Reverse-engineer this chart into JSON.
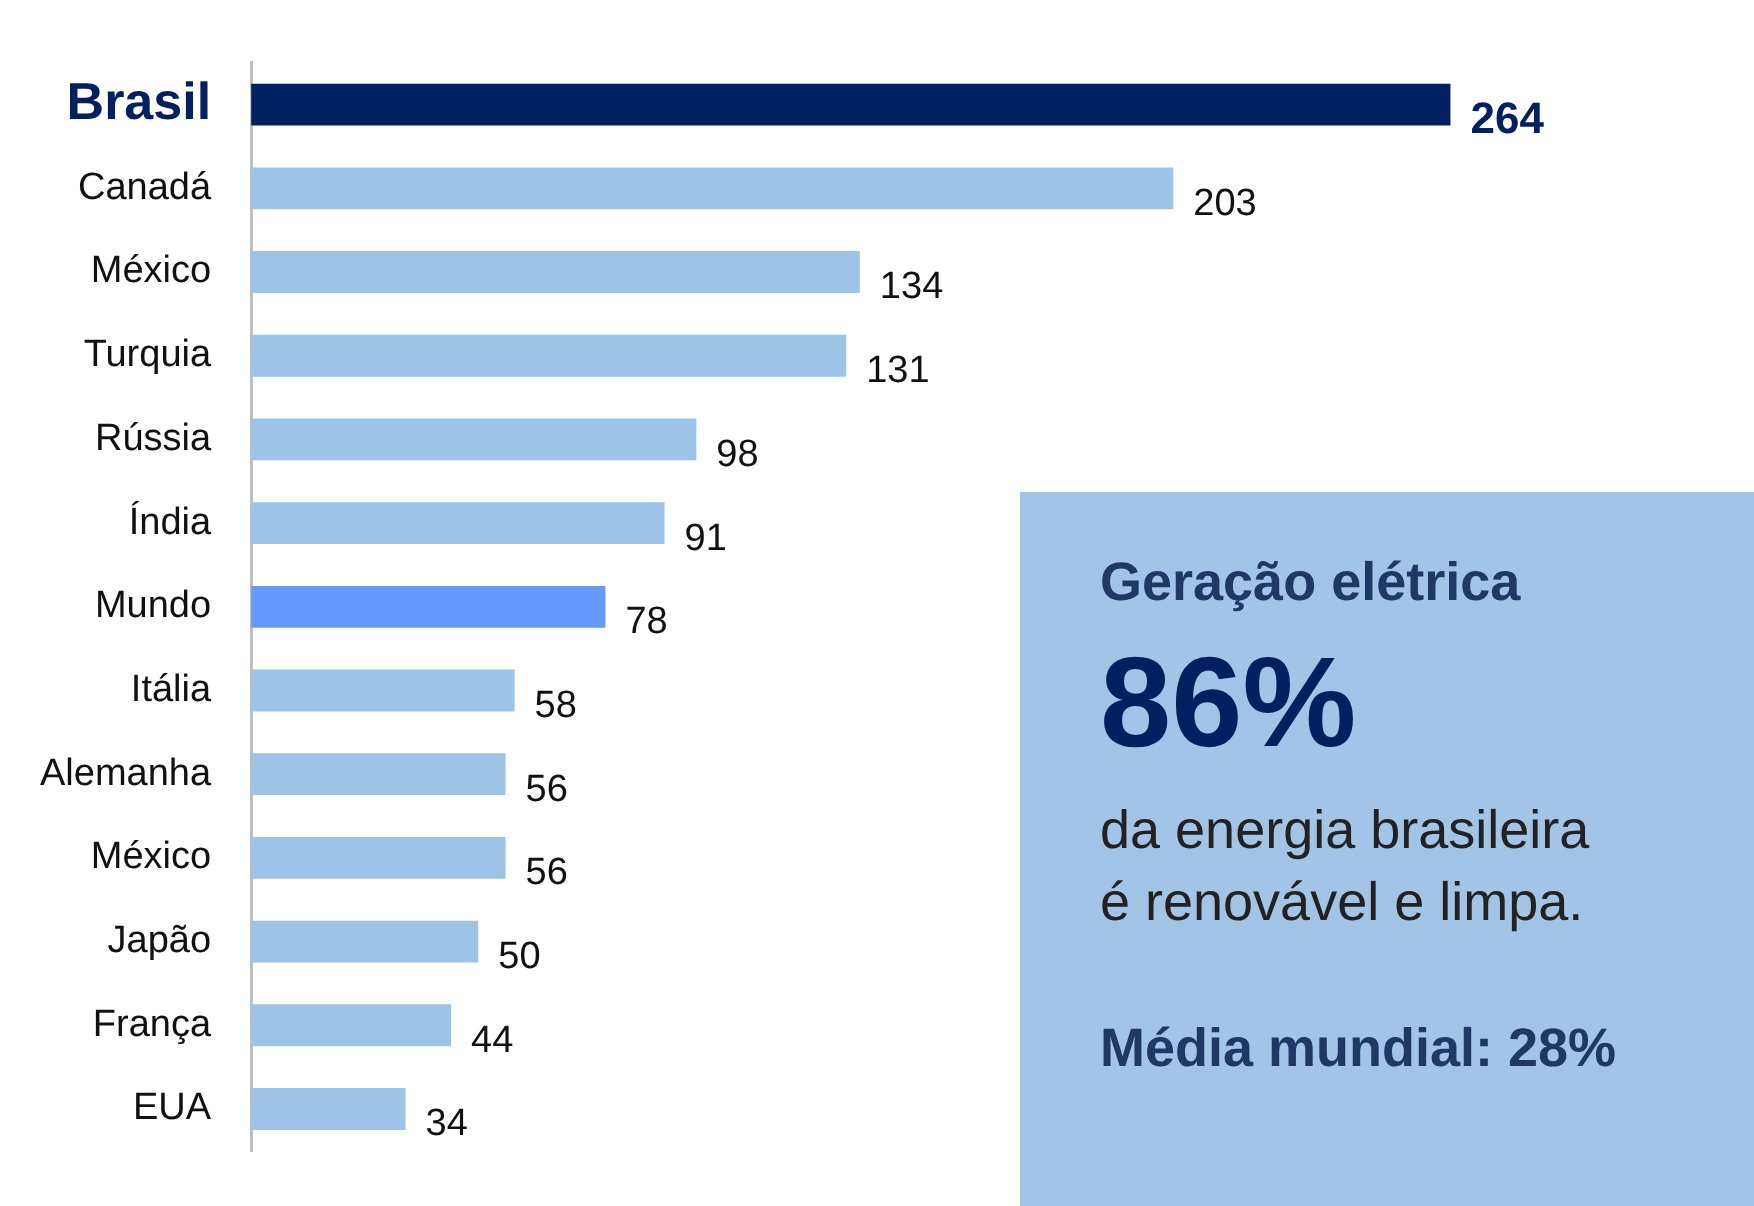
{
  "chart_data": {
    "type": "bar",
    "orientation": "horizontal",
    "categories": [
      "Brasil",
      "Canadá",
      "México",
      "Turquia",
      "Rússia",
      "Índia",
      "Mundo",
      "Itália",
      "Alemanha",
      "México",
      "Japão",
      "França",
      "EUA"
    ],
    "values": [
      264,
      203,
      134,
      131,
      98,
      91,
      78,
      58,
      56,
      56,
      50,
      44,
      34
    ],
    "colors": [
      "#002060",
      "#9dc3e6",
      "#9dc3e6",
      "#9dc3e6",
      "#9dc3e6",
      "#9dc3e6",
      "#6699ff",
      "#9dc3e6",
      "#9dc3e6",
      "#9dc3e6",
      "#9dc3e6",
      "#9dc3e6",
      "#9dc3e6"
    ],
    "tick_labels": "y",
    "legend": false,
    "data_labels": true,
    "annotations": [
      "Geração elétrica",
      "86%",
      "da energia brasileira é renovável e limpa.",
      "Média mundial: 28%"
    ]
  }
}
